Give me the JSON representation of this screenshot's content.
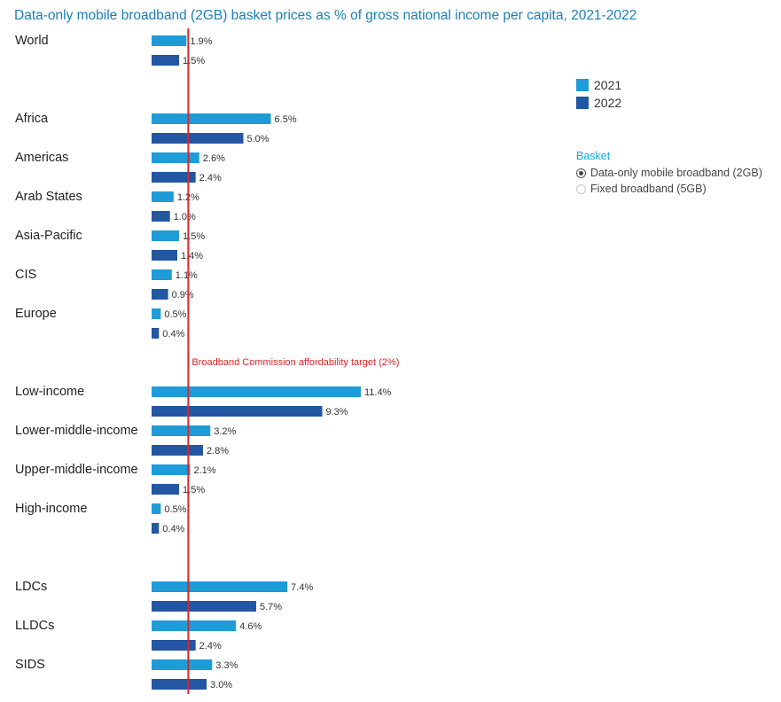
{
  "chart_data": {
    "type": "bar",
    "orientation": "horizontal",
    "title": "Data-only mobile broadband (2GB) basket prices as % of gross national income per capita, 2021-2022",
    "series": [
      {
        "name": "2021",
        "color": "#1f9bd8"
      },
      {
        "name": "2022",
        "color": "#2356a3"
      }
    ],
    "groups": [
      {
        "category": "World",
        "values": [
          1.9,
          1.5
        ],
        "labels": [
          "1.9%",
          "1.5%"
        ]
      },
      {
        "category": "Africa",
        "values": [
          6.5,
          5.0
        ],
        "labels": [
          "6.5%",
          "5.0%"
        ]
      },
      {
        "category": "Americas",
        "values": [
          2.6,
          2.4
        ],
        "labels": [
          "2.6%",
          "2.4%"
        ]
      },
      {
        "category": "Arab States",
        "values": [
          1.2,
          1.0
        ],
        "labels": [
          "1.2%",
          "1.0%"
        ]
      },
      {
        "category": "Asia-Pacific",
        "values": [
          1.5,
          1.4
        ],
        "labels": [
          "1.5%",
          "1.4%"
        ]
      },
      {
        "category": "CIS",
        "values": [
          1.1,
          0.9
        ],
        "labels": [
          "1.1%",
          "0.9%"
        ]
      },
      {
        "category": "Europe",
        "values": [
          0.5,
          0.4
        ],
        "labels": [
          "0.5%",
          "0.4%"
        ]
      },
      {
        "category": "Low-income",
        "values": [
          11.4,
          9.3
        ],
        "labels": [
          "11.4%",
          "9.3%"
        ]
      },
      {
        "category": "Lower-middle-income",
        "values": [
          3.2,
          2.8
        ],
        "labels": [
          "3.2%",
          "2.8%"
        ]
      },
      {
        "category": "Upper-middle-income",
        "values": [
          2.1,
          1.5
        ],
        "labels": [
          "2.1%",
          "1.5%"
        ]
      },
      {
        "category": "High-income",
        "values": [
          0.5,
          0.4
        ],
        "labels": [
          "0.5%",
          "0.4%"
        ]
      },
      {
        "category": "LDCs",
        "values": [
          7.4,
          5.7
        ],
        "labels": [
          "7.4%",
          "5.7%"
        ]
      },
      {
        "category": "LLDCs",
        "values": [
          4.6,
          2.4
        ],
        "labels": [
          "4.6%",
          "2.4%"
        ]
      },
      {
        "category": "SIDS",
        "values": [
          3.3,
          3.0
        ],
        "labels": [
          "3.3%",
          "3.0%"
        ]
      }
    ],
    "reference_line": {
      "value": 2,
      "label": "Broadband Commission affordability target (2%)",
      "color": "#d62728"
    },
    "legend_position": "right",
    "grid": false
  },
  "legend": {
    "items": [
      {
        "label": "2021",
        "color": "#1f9bd8"
      },
      {
        "label": "2022",
        "color": "#2356a3"
      }
    ]
  },
  "basket": {
    "heading": "Basket",
    "options": [
      {
        "label": "Data-only mobile broadband (2GB)",
        "selected": true
      },
      {
        "label": "Fixed broadband (5GB)",
        "selected": false
      }
    ]
  }
}
